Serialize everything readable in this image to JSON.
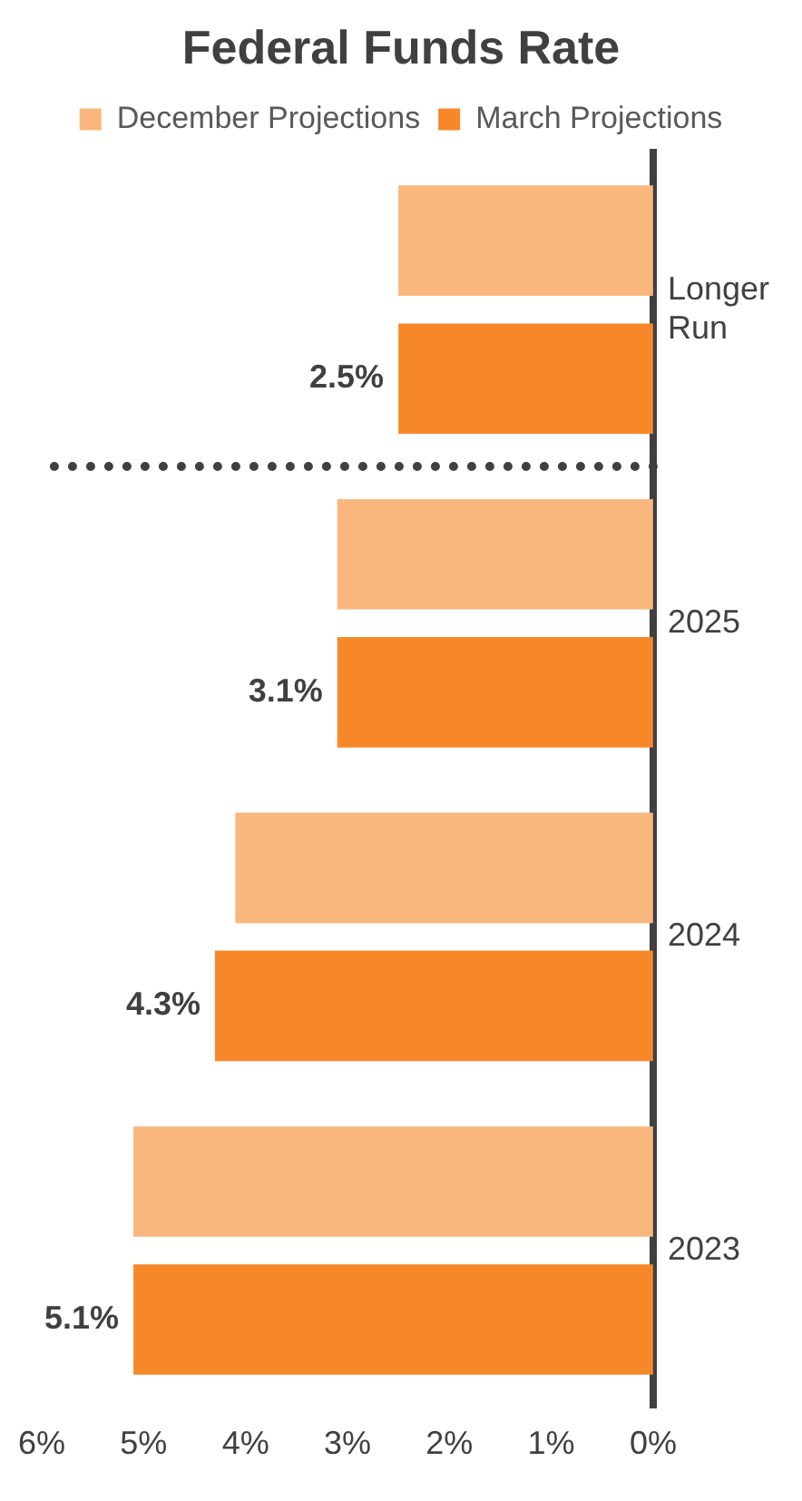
{
  "chart_data": {
    "type": "bar",
    "orientation": "horizontal",
    "title": "Federal Funds Rate",
    "categories": [
      "Longer Run",
      "2025",
      "2024",
      "2023"
    ],
    "series": [
      {
        "name": "December Projections",
        "color": "#f9b77d",
        "values": [
          2.5,
          3.1,
          4.1,
          5.1
        ]
      },
      {
        "name": "March Projections",
        "color": "#f7882a",
        "values": [
          2.5,
          3.1,
          4.3,
          5.1
        ],
        "value_labels": [
          "2.5%",
          "3.1%",
          "4.3%",
          "5.1%"
        ]
      }
    ],
    "xlim": [
      6,
      0
    ],
    "xticks": [
      {
        "value": 6,
        "label": "6%"
      },
      {
        "value": 5,
        "label": "5%"
      },
      {
        "value": 4,
        "label": "4%"
      },
      {
        "value": 3,
        "label": "3%"
      },
      {
        "value": 2,
        "label": "2%"
      },
      {
        "value": 1,
        "label": "1%"
      },
      {
        "value": 0,
        "label": "0%"
      }
    ],
    "grid": false,
    "legend": "top"
  }
}
